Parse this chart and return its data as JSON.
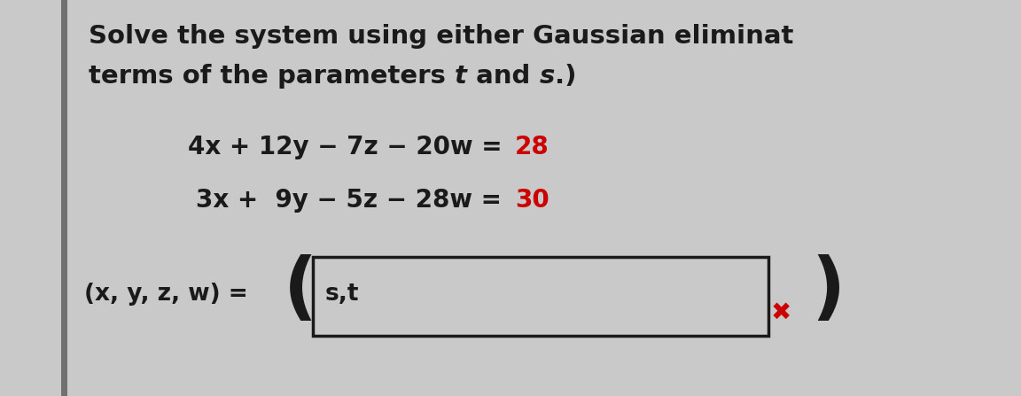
{
  "bg_color": "#c9c9c9",
  "left_bar_color": "#707070",
  "text_color": "#1a1a1a",
  "red_color": "#cc0000",
  "line1": "Solve the system using either Gaussian eliminat",
  "line2_pre": "terms of the parameters ",
  "line2_t": "t",
  "line2_mid": " and ",
  "line2_s": "s",
  "line2_end": ".)",
  "eq1_left": "4x + 12y − 7z − 20w = ",
  "eq1_right": "28",
  "eq2_left": "3x +  9y − 5z − 28w = ",
  "eq2_right": "30",
  "ans_label": "(x, y, z, w) =",
  "ans_box_text": "s,t",
  "xmark": "✖",
  "fs_title": 21,
  "fs_eq": 20,
  "fs_ans": 19,
  "fs_paren": 60,
  "fs_xmark": 20
}
